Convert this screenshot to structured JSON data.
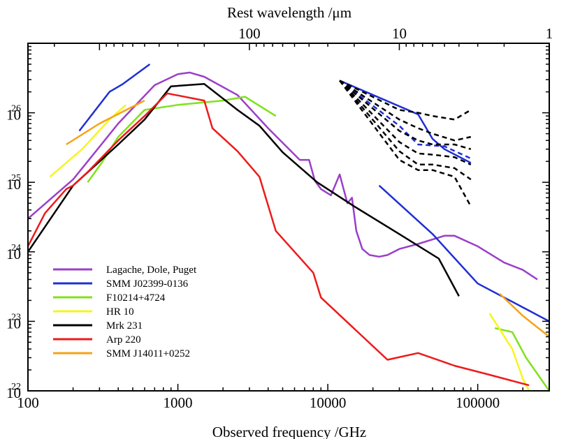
{
  "chart_data": {
    "type": "line",
    "xlabel": "Observed frequency  /GHz",
    "x2label": "Rest wavelength  /μm",
    "xscale": "log",
    "yscale": "log",
    "xlim": [
      100,
      300000
    ],
    "ylim": [
      1e+22,
      1e+27
    ],
    "x_ticks": [
      {
        "value": 100,
        "label": "100"
      },
      {
        "value": 1000,
        "label": "1000"
      },
      {
        "value": 10000,
        "label": "10000"
      },
      {
        "value": 100000,
        "label": "100000"
      }
    ],
    "y_ticks": [
      {
        "value": 1e+22,
        "label": "10",
        "exp": "22"
      },
      {
        "value": 1e+23,
        "label": "10",
        "exp": "23"
      },
      {
        "value": 1e+24,
        "label": "10",
        "exp": "24"
      },
      {
        "value": 1e+25,
        "label": "10",
        "exp": "25"
      },
      {
        "value": 1e+26,
        "label": "10",
        "exp": "26"
      }
    ],
    "top_ticks": [
      {
        "freq": 3000,
        "label": "100"
      },
      {
        "freq": 30000,
        "label": "10"
      },
      {
        "freq": 300000,
        "label": "1"
      }
    ],
    "legend_position": "bottom-left",
    "series": [
      {
        "name": "Lagache, Dole, Puget",
        "color": "#9b3fc9",
        "style": "solid",
        "points": [
          [
            100,
            3e+24
          ],
          [
            200,
            1.1e+25
          ],
          [
            400,
            7e+25
          ],
          [
            700,
            2.5e+26
          ],
          [
            1000,
            3.6e+26
          ],
          [
            1200,
            3.8e+26
          ],
          [
            1500,
            3.3e+26
          ],
          [
            2500,
            1.8e+26
          ],
          [
            4000,
            6e+25
          ],
          [
            6500,
            2.1e+25
          ],
          [
            7500,
            2.1e+25
          ],
          [
            8200,
            1.05e+25
          ],
          [
            9000,
            8e+24
          ],
          [
            10500,
            6.5e+24
          ],
          [
            12000,
            1.3e+25
          ],
          [
            13500,
            5e+24
          ],
          [
            14500,
            6e+24
          ],
          [
            15500,
            2e+24
          ],
          [
            17000,
            1.1e+24
          ],
          [
            19000,
            9e+23
          ],
          [
            22000,
            8.5e+23
          ],
          [
            25000,
            9e+23
          ],
          [
            30000,
            1.1e+24
          ],
          [
            40000,
            1.3e+24
          ],
          [
            60000,
            1.7e+24
          ],
          [
            70000,
            1.7e+24
          ],
          [
            100000,
            1.2e+24
          ],
          [
            150000,
            7e+23
          ],
          [
            200000,
            5.5e+23
          ],
          [
            250000,
            4e+23
          ]
        ]
      },
      {
        "name": "SMM J02399-0136",
        "color": "#1f2fd4",
        "style": "solid",
        "points": [
          [
            220,
            5.5e+25
          ],
          [
            350,
            2e+26
          ],
          [
            430,
            2.6e+26
          ],
          [
            650,
            5e+26
          ]
        ]
      },
      {
        "name": "SMM J02399-0136",
        "color": "#1f2fd4",
        "style": "solid",
        "points": [
          [
            22000,
            9e+24
          ],
          [
            50000,
            1.8e+24
          ],
          [
            100000,
            3.5e+23
          ],
          [
            300000,
            1e+23
          ]
        ]
      },
      {
        "name": "F10214+4724",
        "color": "#7fe21a",
        "style": "solid",
        "points": [
          [
            250,
            1e+25
          ],
          [
            310,
            1.9e+25
          ],
          [
            400,
            4.5e+25
          ],
          [
            600,
            1.1e+26
          ],
          [
            1000,
            1.3e+26
          ],
          [
            2000,
            1.5e+26
          ],
          [
            2800,
            1.7e+26
          ],
          [
            4500,
            9e+25
          ]
        ]
      },
      {
        "name": "F10214+4724",
        "color": "#7fe21a",
        "style": "solid",
        "points": [
          [
            130000,
            8e+22
          ],
          [
            170000,
            7e+22
          ],
          [
            210000,
            3e+22
          ],
          [
            300000,
            1e+22
          ]
        ]
      },
      {
        "name": "HR 10",
        "color": "#f5f51f",
        "style": "solid",
        "points": [
          [
            140,
            1.2e+25
          ],
          [
            230,
            3e+25
          ],
          [
            350,
            8e+25
          ],
          [
            450,
            1.3e+26
          ]
        ]
      },
      {
        "name": "HR 10",
        "color": "#f5f51f",
        "style": "solid",
        "points": [
          [
            120000,
            1.3e+23
          ],
          [
            170000,
            4e+22
          ],
          [
            200000,
            1.5e+22
          ],
          [
            220000,
            1e+22
          ]
        ]
      },
      {
        "name": "Mrk 231",
        "color": "#000000",
        "style": "solid",
        "points": [
          [
            100,
            1e+24
          ],
          [
            200,
            9e+24
          ],
          [
            400,
            3.5e+25
          ],
          [
            600,
            8e+25
          ],
          [
            900,
            2.4e+26
          ],
          [
            1500,
            2.6e+26
          ],
          [
            2500,
            1.1e+26
          ],
          [
            3500,
            6.5e+25
          ],
          [
            5000,
            2.7e+25
          ],
          [
            8500,
            1e+25
          ],
          [
            15000,
            4.5e+24
          ],
          [
            30000,
            1.8e+24
          ],
          [
            55000,
            8e+23
          ],
          [
            75000,
            2.3e+23
          ]
        ]
      },
      {
        "name": "Arp 220",
        "color": "#ee1a1a",
        "style": "solid",
        "points": [
          [
            100,
            1.2e+24
          ],
          [
            130,
            3.6e+24
          ],
          [
            180,
            8e+24
          ],
          [
            200,
            9e+24
          ],
          [
            250,
            1.4e+25
          ],
          [
            400,
            4e+25
          ],
          [
            600,
            9e+25
          ],
          [
            850,
            1.9e+26
          ],
          [
            1500,
            1.5e+26
          ],
          [
            1700,
            6e+25
          ],
          [
            2500,
            2.8e+25
          ],
          [
            3500,
            1.2e+25
          ],
          [
            4500,
            2e+24
          ],
          [
            8000,
            5e+23
          ],
          [
            9000,
            2.2e+23
          ],
          [
            25000,
            2.8e+22
          ],
          [
            40000,
            3.5e+22
          ],
          [
            70000,
            2.3e+22
          ],
          [
            120000,
            1.7e+22
          ],
          [
            220000,
            1.2e+22
          ]
        ]
      },
      {
        "name": "SMM J14011+0252",
        "color": "#f5a316",
        "style": "solid",
        "points": [
          [
            180,
            3.5e+25
          ],
          [
            300,
            7e+25
          ],
          [
            600,
            1.5e+26
          ]
        ]
      },
      {
        "name": "SMM J14011+0252",
        "color": "#f5a316",
        "style": "solid",
        "points": [
          [
            140000,
            2.5e+23
          ],
          [
            200000,
            1.2e+23
          ],
          [
            300000,
            6e+22
          ]
        ]
      },
      {
        "name": "SMM J02399-0136",
        "color": "#1f2fd4",
        "style": "solid",
        "points": [
          [
            12000,
            2.9e+26
          ],
          [
            40000,
            9.5e+25
          ],
          [
            50000,
            4.2e+25
          ],
          [
            60000,
            3e+25
          ],
          [
            90000,
            1.9e+25
          ]
        ]
      },
      {
        "name": "SMM J02399-0136",
        "color": "#1f2fd4",
        "style": "dashed",
        "points": [
          [
            12000,
            2.9e+26
          ],
          [
            30000,
            6.5e+25
          ],
          [
            40000,
            3.5e+25
          ],
          [
            60000,
            3.3e+25
          ],
          [
            90000,
            2.2e+25
          ]
        ]
      },
      {
        "name": "",
        "color": "#000000",
        "style": "dashed",
        "points": [
          [
            12000,
            2.9e+26
          ],
          [
            30000,
            1.1e+26
          ],
          [
            40000,
            1e+26
          ],
          [
            50000,
            9e+25
          ],
          [
            70000,
            8e+25
          ],
          [
            90000,
            1.1e+26
          ]
        ]
      },
      {
        "name": "",
        "color": "#000000",
        "style": "dashed",
        "points": [
          [
            12000,
            2.9e+26
          ],
          [
            30000,
            8e+25
          ],
          [
            40000,
            6e+25
          ],
          [
            50000,
            5e+25
          ],
          [
            70000,
            4e+25
          ],
          [
            90000,
            4.5e+25
          ]
        ]
      },
      {
        "name": "",
        "color": "#000000",
        "style": "dashed",
        "points": [
          [
            12000,
            2.9e+26
          ],
          [
            30000,
            5.5e+25
          ],
          [
            40000,
            4e+25
          ],
          [
            50000,
            3.5e+25
          ],
          [
            70000,
            3.5e+25
          ],
          [
            90000,
            3e+25
          ]
        ]
      },
      {
        "name": "",
        "color": "#000000",
        "style": "dashed",
        "points": [
          [
            12000,
            2.9e+26
          ],
          [
            30000,
            3.8e+25
          ],
          [
            40000,
            2.6e+25
          ],
          [
            50000,
            2.5e+25
          ],
          [
            70000,
            2.3e+25
          ],
          [
            90000,
            1.8e+25
          ]
        ]
      },
      {
        "name": "",
        "color": "#000000",
        "style": "dashed",
        "points": [
          [
            12000,
            2.9e+26
          ],
          [
            30000,
            2.8e+25
          ],
          [
            40000,
            1.8e+25
          ],
          [
            50000,
            1.8e+25
          ],
          [
            70000,
            1.6e+25
          ],
          [
            90000,
            1.1e+25
          ]
        ]
      },
      {
        "name": "",
        "color": "#000000",
        "style": "dashed",
        "points": [
          [
            12000,
            2.9e+26
          ],
          [
            30000,
            2.1e+25
          ],
          [
            40000,
            1.5e+25
          ],
          [
            50000,
            1.5e+25
          ],
          [
            70000,
            1.2e+25
          ],
          [
            90000,
            4.5e+24
          ]
        ]
      }
    ],
    "legend": [
      {
        "label": "Lagache, Dole, Puget",
        "color": "#9b3fc9"
      },
      {
        "label": "SMM J02399-0136",
        "color": "#1f2fd4"
      },
      {
        "label": "F10214+4724",
        "color": "#7fe21a"
      },
      {
        "label": "HR 10",
        "color": "#f5f51f"
      },
      {
        "label": "Mrk 231",
        "color": "#000000"
      },
      {
        "label": "Arp 220",
        "color": "#ee1a1a"
      },
      {
        "label": "SMM J14011+0252",
        "color": "#f5a316"
      }
    ]
  }
}
